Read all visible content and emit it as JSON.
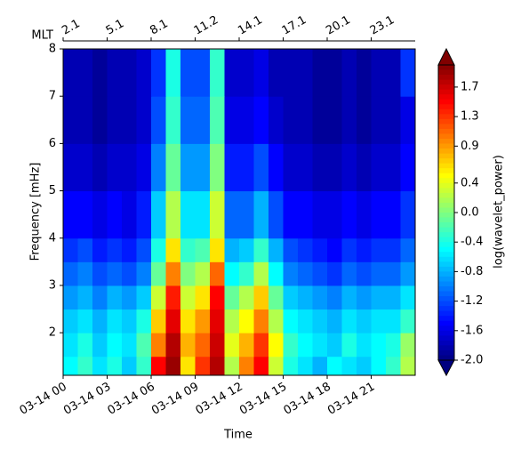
{
  "chart_data": {
    "type": "heatmap",
    "xlabel": "Time",
    "ylabel": "Frequency [mHz]",
    "x2label": "MLT",
    "colorbar_label": "log(wavelet_power)",
    "colormap": "jet",
    "colorbar_extend": "both",
    "xlim": [
      0,
      24
    ],
    "ylim": [
      1.1,
      8
    ],
    "clim": [
      -2,
      2
    ],
    "xticks": [
      {
        "value": 0,
        "label": "03-14 00"
      },
      {
        "value": 3,
        "label": "03-14 03"
      },
      {
        "value": 6,
        "label": "03-14 06"
      },
      {
        "value": 9,
        "label": "03-14 09"
      },
      {
        "value": 12,
        "label": "03-14 12"
      },
      {
        "value": 15,
        "label": "03-14 15"
      },
      {
        "value": 18,
        "label": "03-14 18"
      },
      {
        "value": 21,
        "label": "03-14 21"
      }
    ],
    "x2ticks": [
      {
        "value": 0,
        "label": "2.1"
      },
      {
        "value": 3,
        "label": "5.1"
      },
      {
        "value": 6,
        "label": "8.1"
      },
      {
        "value": 9,
        "label": "11.2"
      },
      {
        "value": 12,
        "label": "14.1"
      },
      {
        "value": 15,
        "label": "17.1"
      },
      {
        "value": 18,
        "label": "20.1"
      },
      {
        "value": 21,
        "label": "23.1"
      }
    ],
    "yticks": [
      2,
      3,
      4,
      5,
      6,
      7,
      8
    ],
    "cticks": [
      {
        "value": -2.0,
        "label": "-2.0"
      },
      {
        "value": -1.6,
        "label": "-1.6"
      },
      {
        "value": -1.2,
        "label": "-1.2"
      },
      {
        "value": -0.8,
        "label": "-0.8"
      },
      {
        "value": -0.4,
        "label": "-0.4"
      },
      {
        "value": 0.0,
        "label": "0.0"
      },
      0.4,
      0.9,
      1.3,
      1.7
    ],
    "xbins": [
      0,
      1,
      2,
      3,
      4,
      5,
      6,
      7,
      8,
      9,
      10,
      11,
      12,
      13,
      14,
      15,
      16,
      17,
      18,
      19,
      20,
      21,
      22,
      23,
      24
    ],
    "ybins": [
      1.1,
      1.5,
      2,
      2.5,
      3,
      3.5,
      4,
      5,
      6,
      7,
      8
    ],
    "z": [
      [
        -0.5,
        -0.3,
        -0.6,
        -0.4,
        -0.7,
        -0.3,
        1.5,
        1.9,
        0.6,
        1.3,
        1.8,
        0.2,
        1.0,
        1.5,
        0.3,
        -0.4,
        -0.6,
        -0.8,
        -0.5,
        -0.6,
        -0.7,
        -0.5,
        -0.3,
        0.2
      ],
      [
        -0.6,
        -0.4,
        -0.7,
        -0.5,
        -0.6,
        -0.2,
        1.0,
        1.8,
        0.8,
        1.1,
        1.7,
        0.4,
        0.8,
        1.3,
        0.5,
        -0.3,
        -0.5,
        -0.6,
        -0.7,
        -0.4,
        -0.6,
        -0.5,
        -0.4,
        0.1
      ],
      [
        -0.7,
        -0.6,
        -0.8,
        -0.6,
        -0.7,
        -0.4,
        0.7,
        1.6,
        0.6,
        0.9,
        1.6,
        0.2,
        0.5,
        1.0,
        0.2,
        -0.5,
        -0.6,
        -0.7,
        -0.8,
        -0.6,
        -0.7,
        -0.6,
        -0.6,
        -0.3
      ],
      [
        -0.9,
        -0.8,
        -1.0,
        -0.8,
        -0.9,
        -0.7,
        0.3,
        1.4,
        0.3,
        0.6,
        1.5,
        -0.1,
        0.2,
        0.7,
        -0.1,
        -0.7,
        -0.8,
        -0.9,
        -1.0,
        -0.8,
        -0.9,
        -0.8,
        -0.8,
        -0.6
      ],
      [
        -1.1,
        -1.0,
        -1.2,
        -1.1,
        -1.2,
        -1.0,
        -0.1,
        1.0,
        0.0,
        0.2,
        1.1,
        -0.5,
        -0.3,
        0.2,
        -0.5,
        -1.0,
        -1.1,
        -1.2,
        -1.3,
        -1.1,
        -1.2,
        -1.1,
        -1.1,
        -0.9
      ],
      [
        -1.3,
        -1.2,
        -1.4,
        -1.3,
        -1.4,
        -1.2,
        -0.4,
        0.6,
        -0.3,
        -0.2,
        0.6,
        -0.8,
        -0.7,
        -0.3,
        -0.8,
        -1.2,
        -1.3,
        -1.4,
        -1.5,
        -1.3,
        -1.4,
        -1.3,
        -1.3,
        -1.1
      ],
      [
        -1.5,
        -1.5,
        -1.6,
        -1.5,
        -1.6,
        -1.4,
        -0.7,
        0.2,
        -0.6,
        -0.6,
        0.3,
        -1.1,
        -1.1,
        -0.8,
        -1.2,
        -1.5,
        -1.5,
        -1.6,
        -1.6,
        -1.5,
        -1.6,
        -1.5,
        -1.5,
        -1.3
      ],
      [
        -1.7,
        -1.7,
        -1.8,
        -1.7,
        -1.7,
        -1.6,
        -1.0,
        -0.1,
        -0.9,
        -0.9,
        0.0,
        -1.4,
        -1.4,
        -1.2,
        -1.5,
        -1.7,
        -1.7,
        -1.8,
        -1.8,
        -1.7,
        -1.8,
        -1.7,
        -1.7,
        -1.5
      ],
      [
        -1.8,
        -1.8,
        -1.9,
        -1.8,
        -1.8,
        -1.7,
        -1.2,
        -0.3,
        -1.1,
        -1.1,
        -0.2,
        -1.6,
        -1.6,
        -1.5,
        -1.7,
        -1.8,
        -1.8,
        -1.9,
        -1.9,
        -1.8,
        -1.9,
        -1.8,
        -1.8,
        -1.6
      ],
      [
        -1.8,
        -1.8,
        -1.9,
        -1.8,
        -1.8,
        -1.7,
        -1.3,
        -0.4,
        -1.2,
        -1.2,
        -0.3,
        -1.7,
        -1.7,
        -1.6,
        -1.8,
        -1.8,
        -1.8,
        -1.9,
        -1.9,
        -1.8,
        -1.9,
        -1.8,
        -1.8,
        -1.3
      ]
    ]
  }
}
